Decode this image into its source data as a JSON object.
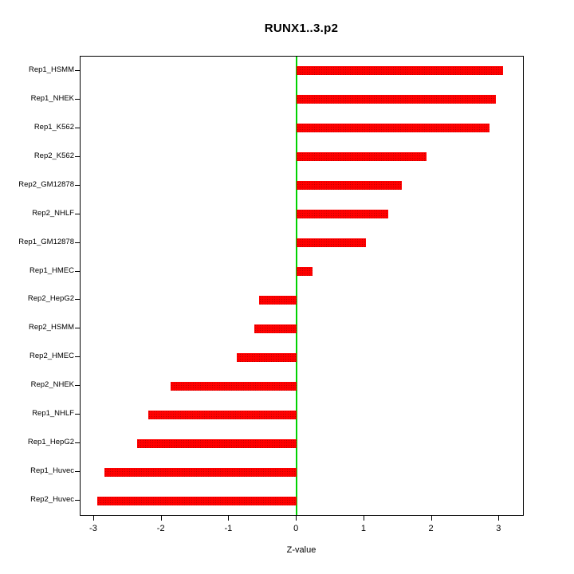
{
  "chart_data": {
    "type": "bar",
    "orientation": "horizontal",
    "title": "RUNX1..3.p2",
    "xlabel": "Z-value",
    "ylabel": "",
    "categories": [
      "Rep1_HSMM",
      "Rep1_NHEK",
      "Rep1_K562",
      "Rep2_K562",
      "Rep2_GM12878",
      "Rep2_NHLF",
      "Rep1_GM12878",
      "Rep1_HMEC",
      "Rep2_HepG2",
      "Rep2_HSMM",
      "Rep2_HMEC",
      "Rep2_NHEK",
      "Rep1_NHLF",
      "Rep1_HepG2",
      "Rep1_Huvec",
      "Rep2_Huvec"
    ],
    "values": [
      3.06,
      2.95,
      2.86,
      1.92,
      1.56,
      1.35,
      1.02,
      0.23,
      -0.56,
      -0.63,
      -0.89,
      -1.87,
      -2.2,
      -2.36,
      -2.85,
      -2.95
    ],
    "x_ticks": [
      -3,
      -2,
      -1,
      0,
      1,
      2,
      3
    ],
    "xlim": [
      -3.2,
      3.35
    ],
    "grid": false,
    "legend": "none",
    "bar_color": "#ff0000",
    "zero_line_color": "#00d200"
  }
}
